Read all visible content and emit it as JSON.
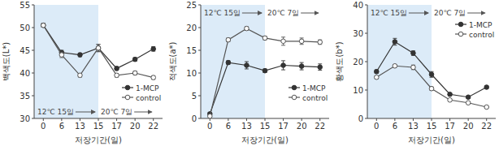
{
  "chart_data": [
    {
      "type": "line",
      "y_label": "백색도(L*)",
      "x_label": "저장기간(일)",
      "categories": [
        "0",
        "6",
        "13",
        "15",
        "17",
        "20",
        "22"
      ],
      "ylim": [
        30,
        55
      ],
      "yticks": [
        30,
        35,
        40,
        45,
        50,
        55
      ],
      "legend": "lower right",
      "periods": [
        {
          "label": "12℃ 15일",
          "from": "0",
          "to": "15"
        },
        {
          "label": "20℃ 7일",
          "from": "15",
          "to": "22"
        }
      ],
      "series": [
        {
          "name": "1-MCP",
          "color": "#333333",
          "marker": "filled",
          "values": [
            50.5,
            44.5,
            44.0,
            45.5,
            41.0,
            43.0,
            45.3
          ],
          "errors": [
            0.4,
            0.5,
            0.4,
            0.8,
            0.4,
            0.4,
            0.5
          ]
        },
        {
          "name": "control",
          "color": "#555555",
          "marker": "open",
          "values": [
            50.5,
            44.0,
            39.5,
            45.5,
            39.5,
            40.0,
            39.0
          ],
          "errors": [
            0.4,
            0.6,
            0.4,
            0.8,
            0.4,
            0.4,
            0.4
          ]
        }
      ]
    },
    {
      "type": "line",
      "y_label": "적색도(a*)",
      "x_label": "저장기간(일)",
      "categories": [
        "0",
        "6",
        "13",
        "15",
        "17",
        "20",
        "22"
      ],
      "ylim": [
        0,
        25
      ],
      "yticks": [
        0,
        5,
        10,
        15,
        20,
        25
      ],
      "legend": "lower right",
      "periods": [
        {
          "label": "12℃ 15일",
          "from": "0",
          "to": "15"
        },
        {
          "label": "20℃ 7일",
          "from": "15",
          "to": "22"
        }
      ],
      "series": [
        {
          "name": "1-MCP",
          "color": "#333333",
          "marker": "filled",
          "values": [
            1.0,
            12.3,
            11.7,
            10.5,
            11.7,
            11.5,
            11.3
          ],
          "errors": [
            0.3,
            0.4,
            0.8,
            0.4,
            1.0,
            0.8,
            0.7
          ]
        },
        {
          "name": "control",
          "color": "#555555",
          "marker": "open",
          "values": [
            0.5,
            17.3,
            19.8,
            17.7,
            17.0,
            17.0,
            16.8
          ],
          "errors": [
            0.3,
            0.4,
            0.4,
            0.4,
            0.9,
            0.7,
            0.5
          ]
        }
      ]
    },
    {
      "type": "line",
      "y_label": "황색도(b*)",
      "x_label": "저장기간(일)",
      "categories": [
        "0",
        "6",
        "13",
        "15",
        "17",
        "20",
        "22"
      ],
      "ylim": [
        0,
        40
      ],
      "yticks": [
        0,
        10,
        20,
        30,
        40
      ],
      "legend": "upper right",
      "periods": [
        {
          "label": "12℃ 15일",
          "from": "0",
          "to": "15"
        },
        {
          "label": "20℃ 7일",
          "from": "15",
          "to": "22"
        }
      ],
      "series": [
        {
          "name": "1-MCP",
          "color": "#333333",
          "marker": "filled",
          "values": [
            16.5,
            27.0,
            23.0,
            15.5,
            8.5,
            7.5,
            11.0
          ],
          "errors": [
            0.6,
            1.2,
            0.8,
            1.0,
            0.5,
            0.4,
            0.5
          ]
        },
        {
          "name": "control",
          "color": "#555555",
          "marker": "open",
          "values": [
            14.5,
            18.5,
            18.0,
            10.5,
            6.5,
            5.5,
            4.0
          ],
          "errors": [
            0.5,
            0.5,
            0.8,
            0.6,
            0.4,
            0.3,
            0.3
          ]
        }
      ]
    }
  ]
}
